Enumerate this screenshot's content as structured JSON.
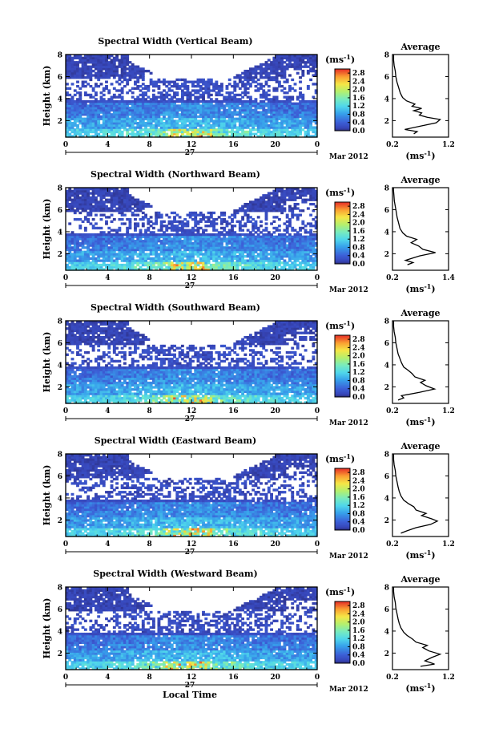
{
  "chart_data": [
    {
      "type": "heatmap",
      "title": "Spectral Width (Vertical Beam)",
      "beam": "vertical",
      "ylabel": "Height (km)",
      "xlim": [
        0,
        24
      ],
      "ylim": [
        0.5,
        8
      ],
      "x_ticks": [
        "0",
        "4",
        "8",
        "12",
        "16",
        "20",
        "0"
      ],
      "y_ticks": [
        "2",
        "4",
        "6",
        "8"
      ],
      "date_day": "27",
      "date_month": "Mar 2012",
      "colorbar": {
        "unit": "(ms",
        "unit_exp": "-1",
        "unit_close": ")",
        "ticks": [
          "0.0",
          "0.4",
          "0.8",
          "1.2",
          "1.6",
          "2.0",
          "2.4",
          "2.8"
        ],
        "range": [
          0,
          3.0
        ]
      },
      "profile": {
        "title": "Average",
        "xlabel": "(ms",
        "xlabel_exp": "-1",
        "xlabel_close": ")",
        "x_ticks": [
          "0.2",
          "1.2"
        ],
        "xlim": [
          0.2,
          1.2
        ],
        "y_ticks": [
          "2",
          "4",
          "6",
          "8"
        ],
        "ylim": [
          0.5,
          8
        ],
        "points": [
          [
            0.58,
            0.8
          ],
          [
            0.64,
            1.0
          ],
          [
            0.42,
            1.2
          ],
          [
            0.7,
            1.5
          ],
          [
            0.98,
            1.8
          ],
          [
            1.05,
            2.1
          ],
          [
            0.82,
            2.3
          ],
          [
            0.68,
            2.5
          ],
          [
            0.72,
            2.7
          ],
          [
            0.58,
            2.9
          ],
          [
            0.72,
            3.1
          ],
          [
            0.55,
            3.3
          ],
          [
            0.6,
            3.5
          ],
          [
            0.45,
            3.8
          ],
          [
            0.38,
            4.1
          ],
          [
            0.34,
            4.5
          ],
          [
            0.31,
            5.0
          ],
          [
            0.28,
            5.5
          ],
          [
            0.26,
            6.0
          ],
          [
            0.25,
            6.5
          ],
          [
            0.23,
            7.0
          ],
          [
            0.22,
            7.5
          ],
          [
            0.22,
            8.0
          ]
        ]
      }
    },
    {
      "type": "heatmap",
      "title": "Spectral Width (Northward Beam)",
      "beam": "northward",
      "ylabel": "Height (km)",
      "xlim": [
        0,
        24
      ],
      "ylim": [
        0.5,
        8
      ],
      "x_ticks": [
        "0",
        "4",
        "8",
        "12",
        "16",
        "20",
        "0"
      ],
      "y_ticks": [
        "2",
        "4",
        "6",
        "8"
      ],
      "date_day": "27",
      "date_month": "Mar 2012",
      "colorbar": {
        "unit": "(ms",
        "unit_exp": "-1",
        "unit_close": ")",
        "ticks": [
          "0.0",
          "0.4",
          "0.8",
          "1.2",
          "1.6",
          "2.0",
          "2.4",
          "2.8"
        ],
        "range": [
          0,
          3.0
        ]
      },
      "profile": {
        "title": "Average",
        "xlabel": "(ms",
        "xlabel_exp": "-1",
        "xlabel_close": ")",
        "x_ticks": [
          "0.2",
          "1.4"
        ],
        "xlim": [
          0.2,
          1.4
        ],
        "y_ticks": [
          "2",
          "4",
          "6",
          "8"
        ],
        "ylim": [
          0.5,
          8
        ],
        "points": [
          [
            0.52,
            1.0
          ],
          [
            0.64,
            1.2
          ],
          [
            0.48,
            1.4
          ],
          [
            0.78,
            1.8
          ],
          [
            1.12,
            2.1
          ],
          [
            0.85,
            2.4
          ],
          [
            0.76,
            2.7
          ],
          [
            0.6,
            3.0
          ],
          [
            0.72,
            3.3
          ],
          [
            0.5,
            3.6
          ],
          [
            0.42,
            3.9
          ],
          [
            0.36,
            4.3
          ],
          [
            0.33,
            4.8
          ],
          [
            0.3,
            5.3
          ],
          [
            0.28,
            5.8
          ],
          [
            0.26,
            6.3
          ],
          [
            0.24,
            6.8
          ],
          [
            0.23,
            7.3
          ],
          [
            0.22,
            7.8
          ],
          [
            0.22,
            8.0
          ]
        ]
      }
    },
    {
      "type": "heatmap",
      "title": "Spectral Width (Southward Beam)",
      "beam": "southward",
      "ylabel": "Height (km)",
      "xlim": [
        0,
        24
      ],
      "ylim": [
        0.5,
        8
      ],
      "x_ticks": [
        "0",
        "4",
        "8",
        "12",
        "16",
        "20",
        "0"
      ],
      "y_ticks": [
        "2",
        "4",
        "6",
        "8"
      ],
      "date_day": "27",
      "date_month": "Mar 2012",
      "colorbar": {
        "unit": "(ms",
        "unit_exp": "-1",
        "unit_close": ")",
        "ticks": [
          "0.0",
          "0.4",
          "0.8",
          "1.2",
          "1.6",
          "2.0",
          "2.4",
          "2.8"
        ],
        "range": [
          0,
          3.0
        ]
      },
      "profile": {
        "title": "Average",
        "xlabel": "(ms",
        "xlabel_exp": "-1",
        "xlabel_close": ")",
        "x_ticks": [
          "0.2",
          "1.2"
        ],
        "xlim": [
          0.2,
          1.2
        ],
        "y_ticks": [
          "2",
          "4",
          "6",
          "8"
        ],
        "ylim": [
          0.5,
          8
        ],
        "points": [
          [
            0.3,
            0.8
          ],
          [
            0.4,
            1.0
          ],
          [
            0.36,
            1.2
          ],
          [
            0.68,
            1.5
          ],
          [
            0.95,
            1.8
          ],
          [
            0.8,
            2.1
          ],
          [
            0.7,
            2.4
          ],
          [
            0.78,
            2.6
          ],
          [
            0.6,
            2.9
          ],
          [
            0.55,
            3.2
          ],
          [
            0.48,
            3.5
          ],
          [
            0.4,
            3.8
          ],
          [
            0.36,
            4.2
          ],
          [
            0.33,
            4.6
          ],
          [
            0.3,
            5.0
          ],
          [
            0.28,
            5.5
          ],
          [
            0.26,
            6.0
          ],
          [
            0.25,
            6.5
          ],
          [
            0.23,
            7.0
          ],
          [
            0.22,
            7.5
          ],
          [
            0.22,
            8.0
          ]
        ]
      }
    },
    {
      "type": "heatmap",
      "title": "Spectral Width (Eastward Beam)",
      "beam": "eastward",
      "ylabel": "Height (km)",
      "xlim": [
        0,
        24
      ],
      "ylim": [
        0.5,
        8
      ],
      "x_ticks": [
        "0",
        "4",
        "8",
        "12",
        "16",
        "20",
        "0"
      ],
      "y_ticks": [
        "2",
        "4",
        "6",
        "8"
      ],
      "date_day": "27",
      "date_month": "Mar 2012",
      "colorbar": {
        "unit": "(ms",
        "unit_exp": "-1",
        "unit_close": ")",
        "ticks": [
          "0.0",
          "0.4",
          "0.8",
          "1.2",
          "1.6",
          "2.0",
          "2.4",
          "2.8"
        ],
        "range": [
          0,
          3.0
        ]
      },
      "profile": {
        "title": "Average",
        "xlabel": "(ms",
        "xlabel_exp": "-1",
        "xlabel_close": ")",
        "x_ticks": [
          "0.2",
          "1.2"
        ],
        "xlim": [
          0.2,
          1.2
        ],
        "y_ticks": [
          "2",
          "4",
          "6",
          "8"
        ],
        "ylim": [
          0.5,
          8
        ],
        "points": [
          [
            0.35,
            0.8
          ],
          [
            0.45,
            1.0
          ],
          [
            0.62,
            1.3
          ],
          [
            0.88,
            1.6
          ],
          [
            1.0,
            1.9
          ],
          [
            0.9,
            2.1
          ],
          [
            0.72,
            2.4
          ],
          [
            0.8,
            2.6
          ],
          [
            0.62,
            2.9
          ],
          [
            0.58,
            3.2
          ],
          [
            0.48,
            3.5
          ],
          [
            0.4,
            3.8
          ],
          [
            0.35,
            4.2
          ],
          [
            0.32,
            4.6
          ],
          [
            0.3,
            5.0
          ],
          [
            0.28,
            5.5
          ],
          [
            0.26,
            6.0
          ],
          [
            0.25,
            6.5
          ],
          [
            0.23,
            7.0
          ],
          [
            0.22,
            7.5
          ],
          [
            0.22,
            8.0
          ]
        ]
      }
    },
    {
      "type": "heatmap",
      "title": "Spectral Width (Westward Beam)",
      "beam": "westward",
      "ylabel": "Height (km)",
      "xlabel": "Local Time",
      "xlim": [
        0,
        24
      ],
      "ylim": [
        0.5,
        8
      ],
      "x_ticks": [
        "0",
        "4",
        "8",
        "12",
        "16",
        "20",
        "0"
      ],
      "y_ticks": [
        "2",
        "4",
        "6",
        "8"
      ],
      "date_day": "27",
      "date_month": "Mar 2012",
      "colorbar": {
        "unit": "(ms",
        "unit_exp": "-1",
        "unit_close": ")",
        "ticks": [
          "0.0",
          "0.4",
          "0.8",
          "1.2",
          "1.6",
          "2.0",
          "2.4",
          "2.8"
        ],
        "range": [
          0,
          3.0
        ]
      },
      "profile": {
        "title": "Average",
        "xlabel": "(ms",
        "xlabel_exp": "-1",
        "xlabel_close": ")",
        "x_ticks": [
          "0.2",
          "1.2"
        ],
        "xlim": [
          0.2,
          1.2
        ],
        "y_ticks": [
          "2",
          "4",
          "6",
          "8"
        ],
        "ylim": [
          0.5,
          8
        ],
        "points": [
          [
            0.7,
            0.8
          ],
          [
            0.95,
            1.0
          ],
          [
            0.78,
            1.3
          ],
          [
            0.9,
            1.6
          ],
          [
            1.05,
            1.9
          ],
          [
            0.85,
            2.2
          ],
          [
            0.74,
            2.5
          ],
          [
            0.82,
            2.7
          ],
          [
            0.62,
            3.0
          ],
          [
            0.55,
            3.3
          ],
          [
            0.46,
            3.6
          ],
          [
            0.4,
            3.9
          ],
          [
            0.35,
            4.3
          ],
          [
            0.32,
            4.7
          ],
          [
            0.3,
            5.1
          ],
          [
            0.28,
            5.6
          ],
          [
            0.26,
            6.1
          ],
          [
            0.25,
            6.6
          ],
          [
            0.23,
            7.1
          ],
          [
            0.22,
            7.6
          ],
          [
            0.22,
            8.0
          ]
        ]
      }
    }
  ]
}
